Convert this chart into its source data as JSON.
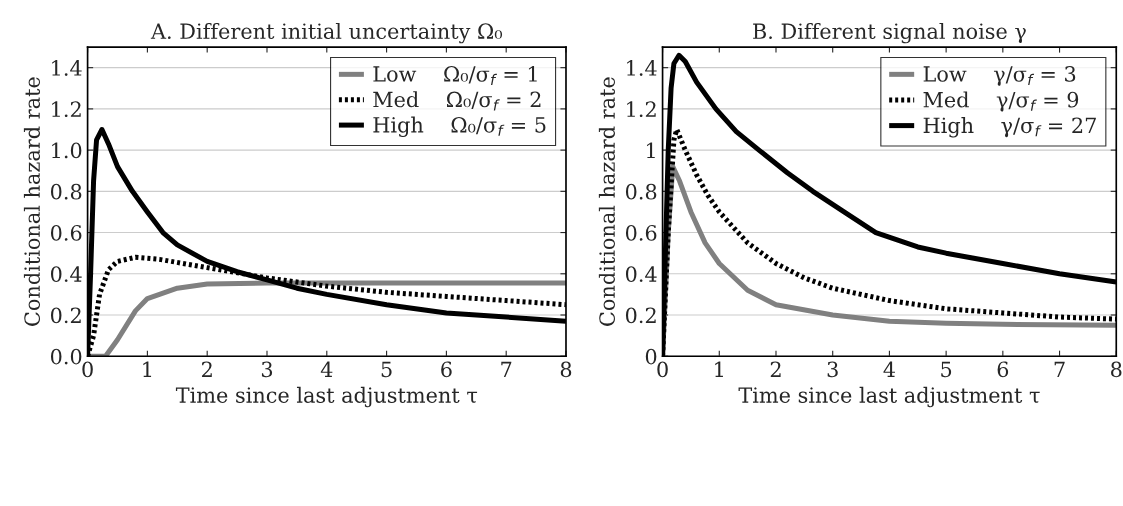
{
  "chart_data": [
    {
      "type": "line",
      "title": "A. Different initial uncertainty Ω₀",
      "xlabel": "Time since last adjustment τ",
      "ylabel": "Conditional hazard rate",
      "xlim": [
        0,
        8
      ],
      "ylim": [
        0,
        1.5
      ],
      "xticks": [
        0,
        1,
        2,
        3,
        4,
        5,
        6,
        7,
        8
      ],
      "yticks": [
        {
          "value": 0,
          "label": "0.0"
        },
        0.2,
        0.4,
        0.6,
        0.8,
        {
          "value": 1,
          "label": "1.0"
        },
        1.2,
        1.4
      ],
      "grid": "y",
      "legend": "top right",
      "series": [
        {
          "name": "Low    Ω₀/σ$_{f}$ = 1",
          "color": "#808080",
          "line_style": "solid",
          "x": [
            0,
            0.3,
            0.5,
            0.8,
            1,
            1.5,
            2,
            3,
            4,
            5,
            6,
            7,
            8
          ],
          "values": [
            0,
            0,
            0.08,
            0.22,
            0.28,
            0.33,
            0.35,
            0.355,
            0.355,
            0.355,
            0.355,
            0.355,
            0.355
          ]
        },
        {
          "name": "Med    Ω₀/σ$_{f}$ = 2",
          "color": "#000000",
          "line_style": "dotted",
          "x": [
            0,
            0.1,
            0.2,
            0.35,
            0.5,
            0.8,
            1.2,
            2,
            3,
            4,
            5,
            6,
            7,
            8
          ],
          "values": [
            0,
            0.1,
            0.3,
            0.42,
            0.46,
            0.48,
            0.47,
            0.43,
            0.38,
            0.34,
            0.31,
            0.29,
            0.27,
            0.25
          ]
        },
        {
          "name": "High    Ω₀/σ$_{f}$ = 5",
          "color": "#000000",
          "line_style": "solid",
          "x": [
            0,
            0.05,
            0.1,
            0.15,
            0.24,
            0.35,
            0.5,
            0.75,
            1,
            1.26,
            1.5,
            2,
            2.5,
            3,
            3.5,
            4,
            5,
            6,
            7,
            8
          ],
          "values": [
            0,
            0.4,
            0.85,
            1.05,
            1.1,
            1.03,
            0.92,
            0.8,
            0.7,
            0.6,
            0.54,
            0.46,
            0.41,
            0.37,
            0.33,
            0.3,
            0.25,
            0.21,
            0.19,
            0.17
          ]
        }
      ]
    },
    {
      "type": "line",
      "title": "B. Different signal noise γ",
      "xlabel": "Time since last adjustment τ",
      "ylabel": "Conditional hazard rate",
      "xlim": [
        0,
        8
      ],
      "ylim": [
        0,
        1.5
      ],
      "xticks": [
        0,
        1,
        2,
        3,
        4,
        5,
        6,
        7,
        8
      ],
      "yticks": [
        0,
        0.2,
        0.4,
        0.6,
        0.8,
        1,
        1.2,
        1.4
      ],
      "grid": "y",
      "legend": "top right",
      "series": [
        {
          "name": "Low    γ/σ$_{f}$ = 3",
          "color": "#808080",
          "line_style": "solid",
          "x": [
            0,
            0.1,
            0.18,
            0.3,
            0.5,
            0.75,
            1,
            1.5,
            2,
            3,
            4,
            5,
            6,
            8
          ],
          "values": [
            0,
            0.6,
            0.92,
            0.85,
            0.7,
            0.55,
            0.45,
            0.32,
            0.25,
            0.2,
            0.17,
            0.16,
            0.155,
            0.15
          ]
        },
        {
          "name": "Med    γ/σ$_{f}$ = 9",
          "color": "#000000",
          "line_style": "dotted",
          "x": [
            0,
            0.1,
            0.2,
            0.25,
            0.4,
            0.6,
            0.8,
            1,
            1.5,
            2,
            2.5,
            3,
            4,
            5,
            6,
            7,
            8
          ],
          "values": [
            0,
            0.6,
            1.05,
            1.1,
            1.0,
            0.88,
            0.78,
            0.7,
            0.55,
            0.45,
            0.38,
            0.33,
            0.27,
            0.23,
            0.21,
            0.19,
            0.18
          ]
        },
        {
          "name": "High    γ/σ$_{f}$ = 27",
          "color": "#000000",
          "line_style": "solid",
          "x": [
            0,
            0.05,
            0.1,
            0.15,
            0.2,
            0.29,
            0.4,
            0.6,
            0.94,
            1.3,
            1.7,
            2.2,
            2.65,
            3.2,
            3.76,
            4.5,
            5,
            6,
            7,
            8
          ],
          "values": [
            0,
            0.5,
            1.0,
            1.3,
            1.42,
            1.46,
            1.43,
            1.33,
            1.2,
            1.09,
            1.0,
            0.89,
            0.8,
            0.7,
            0.6,
            0.53,
            0.5,
            0.45,
            0.4,
            0.36
          ]
        }
      ]
    }
  ]
}
